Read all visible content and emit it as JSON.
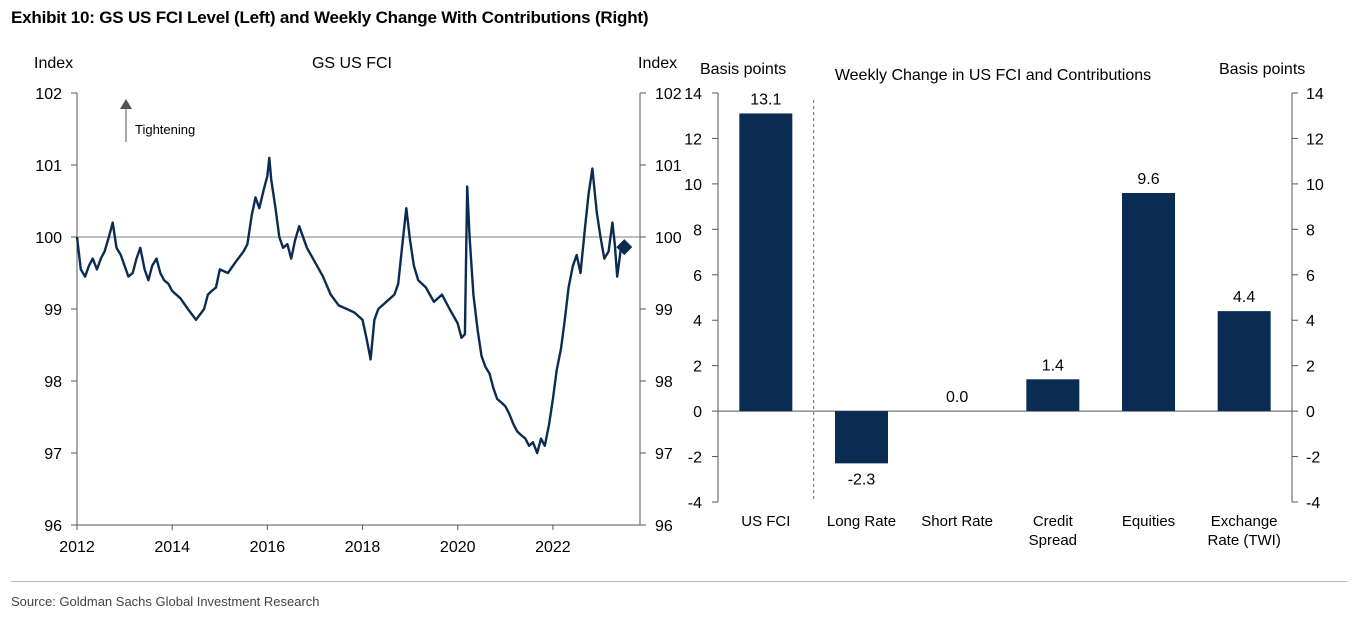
{
  "header": {
    "title": "Exhibit 10: GS US FCI Level (Left) and Weekly Change With Contributions (Right)"
  },
  "footer": {
    "source": "Source: Goldman Sachs Global Investment Research"
  },
  "colors": {
    "series": "#0b2c52",
    "axis": "#555555",
    "refline": "#7f7f7f"
  },
  "chart_data": [
    {
      "type": "line",
      "title": "GS US FCI",
      "ylabel_left": "Index",
      "ylabel_right": "Index",
      "annotation": "Tightening",
      "xlim": [
        2012,
        2023.83
      ],
      "ylim": [
        96,
        102
      ],
      "x_ticks": [
        "2012",
        "2014",
        "2016",
        "2018",
        "2020",
        "2022"
      ],
      "y_ticks": [
        "96",
        "97",
        "98",
        "99",
        "100",
        "101",
        "102"
      ],
      "reference_line": 100,
      "grid": false,
      "end_marker": "diamond",
      "series": [
        {
          "x": [
            2012.0,
            2012.08,
            2012.17,
            2012.25,
            2012.33,
            2012.42,
            2012.5,
            2012.58,
            2012.67,
            2012.75,
            2012.83,
            2012.92,
            2013.0,
            2013.08,
            2013.17,
            2013.25,
            2013.33,
            2013.42,
            2013.5,
            2013.58,
            2013.67,
            2013.75,
            2013.83,
            2013.92,
            2014.0,
            2014.17,
            2014.33,
            2014.5,
            2014.67,
            2014.75,
            2014.83,
            2014.92,
            2015.0,
            2015.17,
            2015.33,
            2015.5,
            2015.58,
            2015.67,
            2015.75,
            2015.83,
            2015.92,
            2016.0,
            2016.04,
            2016.08,
            2016.17,
            2016.25,
            2016.33,
            2016.42,
            2016.5,
            2016.58,
            2016.67,
            2016.83,
            2017.0,
            2017.17,
            2017.33,
            2017.5,
            2017.67,
            2017.83,
            2018.0,
            2018.08,
            2018.17,
            2018.25,
            2018.33,
            2018.5,
            2018.67,
            2018.75,
            2018.83,
            2018.92,
            2019.0,
            2019.08,
            2019.17,
            2019.33,
            2019.5,
            2019.67,
            2019.83,
            2020.0,
            2020.08,
            2020.15,
            2020.2,
            2020.25,
            2020.33,
            2020.42,
            2020.5,
            2020.58,
            2020.67,
            2020.75,
            2020.83,
            2020.92,
            2021.0,
            2021.08,
            2021.17,
            2021.25,
            2021.33,
            2021.42,
            2021.5,
            2021.58,
            2021.67,
            2021.75,
            2021.83,
            2021.92,
            2022.0,
            2022.08,
            2022.17,
            2022.25,
            2022.33,
            2022.42,
            2022.5,
            2022.58,
            2022.67,
            2022.75,
            2022.83,
            2022.92,
            2023.0,
            2023.08,
            2023.17,
            2023.25,
            2023.3,
            2023.35,
            2023.42,
            2023.5
          ],
          "values": [
            100.0,
            99.55,
            99.45,
            99.6,
            99.7,
            99.55,
            99.7,
            99.8,
            100.0,
            100.2,
            99.85,
            99.75,
            99.6,
            99.45,
            99.5,
            99.7,
            99.85,
            99.55,
            99.4,
            99.6,
            99.7,
            99.5,
            99.4,
            99.35,
            99.25,
            99.15,
            99.0,
            98.85,
            99.0,
            99.2,
            99.25,
            99.3,
            99.55,
            99.5,
            99.65,
            99.8,
            99.9,
            100.3,
            100.55,
            100.4,
            100.65,
            100.85,
            101.1,
            100.8,
            100.4,
            100.0,
            99.85,
            99.9,
            99.7,
            99.95,
            100.15,
            99.85,
            99.65,
            99.45,
            99.2,
            99.05,
            99.0,
            98.95,
            98.85,
            98.6,
            98.3,
            98.85,
            99.0,
            99.1,
            99.2,
            99.35,
            99.85,
            100.4,
            99.95,
            99.6,
            99.4,
            99.3,
            99.1,
            99.2,
            99.0,
            98.8,
            98.6,
            98.65,
            100.7,
            100.0,
            99.2,
            98.7,
            98.35,
            98.2,
            98.1,
            97.9,
            97.75,
            97.7,
            97.65,
            97.55,
            97.4,
            97.3,
            97.25,
            97.2,
            97.1,
            97.15,
            97.0,
            97.2,
            97.1,
            97.4,
            97.75,
            98.15,
            98.45,
            98.85,
            99.3,
            99.6,
            99.75,
            99.5,
            100.1,
            100.6,
            100.95,
            100.35,
            100.0,
            99.7,
            99.8,
            100.2,
            99.9,
            99.45,
            99.8,
            99.86
          ]
        }
      ]
    },
    {
      "type": "bar",
      "title": "Weekly Change in US FCI and Contributions",
      "ylabel_left": "Basis points",
      "ylabel_right": "Basis points",
      "ylim": [
        -4,
        14
      ],
      "y_ticks": [
        "-4",
        "-2",
        "0",
        "2",
        "4",
        "6",
        "8",
        "10",
        "12",
        "14"
      ],
      "categories": [
        [
          "US FCI"
        ],
        [
          "Long Rate"
        ],
        [
          "Short Rate"
        ],
        [
          "Credit",
          "Spread"
        ],
        [
          "Equities"
        ],
        [
          "Exchange",
          "Rate (TWI)"
        ]
      ],
      "values": [
        13.1,
        -2.3,
        0.0,
        1.4,
        9.6,
        4.4
      ],
      "data_labels": [
        "13.1",
        "-2.3",
        "0.0",
        "1.4",
        "9.6",
        "4.4"
      ],
      "divider_after_index": 0
    }
  ]
}
